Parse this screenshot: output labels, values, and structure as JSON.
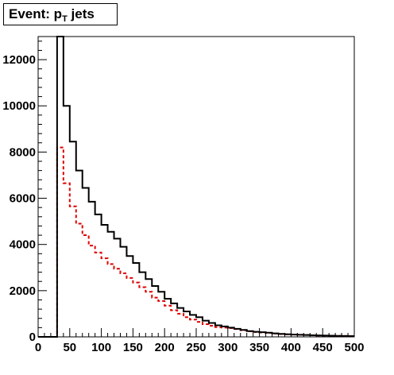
{
  "chart_data": {
    "type": "histogram",
    "title": "Event: p",
    "title_subscript": "T",
    "title_suffix": " jets",
    "xlim": [
      0,
      500
    ],
    "ylim": [
      0,
      13000
    ],
    "x_ticks": [
      0,
      50,
      100,
      150,
      200,
      250,
      300,
      350,
      400,
      450,
      500
    ],
    "y_ticks": [
      0,
      2000,
      4000,
      6000,
      8000,
      10000,
      12000
    ],
    "x_tick_labels": [
      "0",
      "50",
      "100",
      "150",
      "200",
      "250",
      "300",
      "350",
      "400",
      "450",
      "500"
    ],
    "y_tick_labels": [
      "0",
      "2000",
      "4000",
      "6000",
      "8000",
      "10000",
      "12000"
    ],
    "bin_width": 10,
    "bin_edges_start": 0,
    "grid": false,
    "series": [
      {
        "style": "solid",
        "color": "#000000",
        "values": [
          0,
          0,
          0,
          13000,
          10000,
          8450,
          7200,
          6450,
          5850,
          5300,
          4850,
          4550,
          4250,
          3900,
          3500,
          3200,
          2800,
          2500,
          2200,
          1950,
          1650,
          1450,
          1250,
          1100,
          950,
          850,
          700,
          600,
          500,
          450,
          400,
          350,
          300,
          250,
          220,
          200,
          180,
          150,
          130,
          110,
          100,
          90,
          80,
          70,
          60,
          55,
          50,
          45,
          40,
          35
        ]
      },
      {
        "style": "dashed",
        "color": "#e00000",
        "values": [
          0,
          0,
          0,
          8200,
          6650,
          5650,
          4900,
          4400,
          3950,
          3650,
          3400,
          3150,
          2950,
          2750,
          2550,
          2350,
          2150,
          1950,
          1700,
          1550,
          1350,
          1150,
          1000,
          850,
          750,
          650,
          550,
          480,
          420,
          400,
          380,
          340,
          290,
          240,
          210,
          190,
          170,
          140,
          120,
          110,
          100,
          90,
          80,
          70,
          60,
          55,
          50,
          45,
          40,
          35
        ]
      }
    ]
  }
}
